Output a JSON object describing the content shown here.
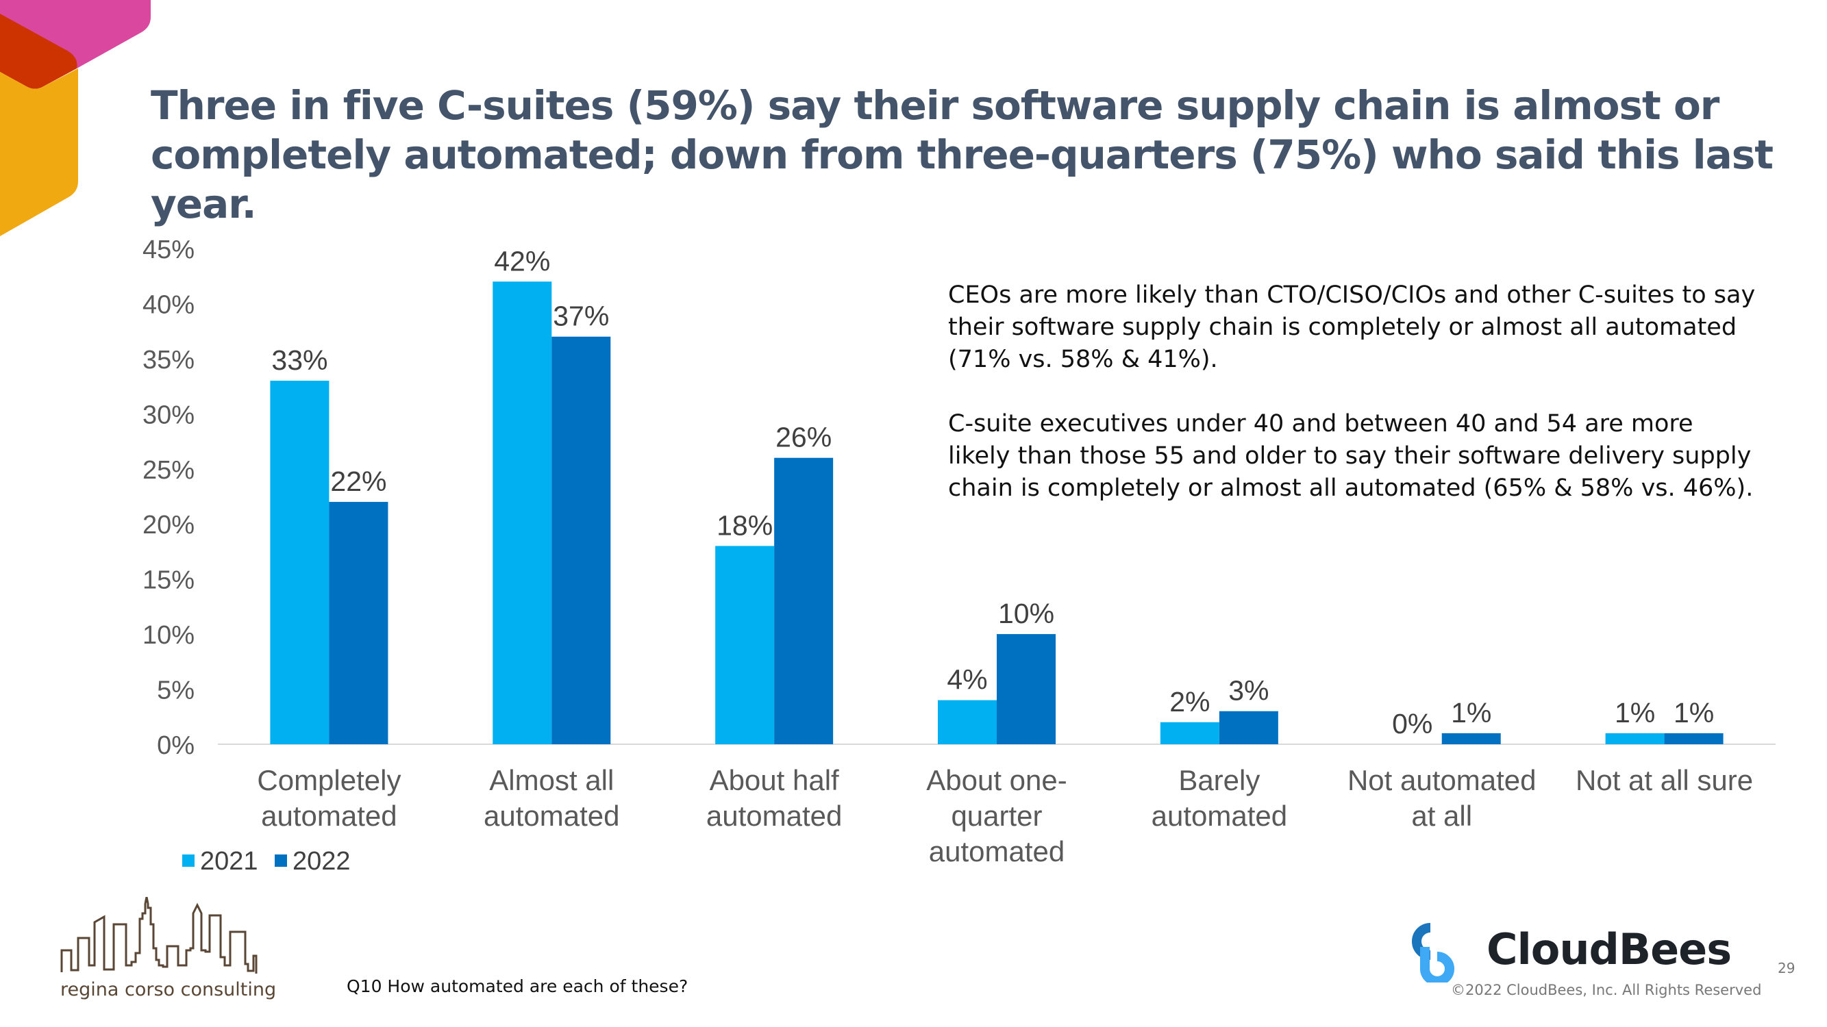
{
  "title": "Three in five C-suites (59%) say their software supply chain is almost or completely automated; down from three-quarters (75%) who said this last year.",
  "notes": [
    "CEOs are more likely than CTO/CISO/CIOs and other C-suites to say their software supply chain is completely or almost all automated (71% vs. 58% & 41%).",
    "C-suite executives under 40 and between 40 and 54 are more likely than those 55 and older to say their software delivery supply chain is completely or almost all automated (65% & 58% vs. 46%)."
  ],
  "chart_data": {
    "type": "bar",
    "categories": [
      [
        "Completely",
        "automated"
      ],
      [
        "Almost all",
        "automated"
      ],
      [
        "About half",
        "automated"
      ],
      [
        "About one-",
        "quarter",
        "automated"
      ],
      [
        "Barely",
        "automated"
      ],
      [
        "Not automated",
        "at all"
      ],
      [
        "Not at all sure"
      ]
    ],
    "series": [
      {
        "name": "2021",
        "color": "#00b0f0",
        "values": [
          33,
          42,
          18,
          4,
          2,
          0,
          1
        ],
        "labels": [
          "33%",
          "42%",
          "18%",
          "4%",
          "2%",
          "0%",
          "1%"
        ]
      },
      {
        "name": "2022",
        "color": "#0070c0",
        "values": [
          22,
          37,
          26,
          10,
          3,
          1,
          1
        ],
        "labels": [
          "22%",
          "37%",
          "26%",
          "10%",
          "3%",
          "1%",
          "1%"
        ]
      }
    ],
    "yticks": [
      "0%",
      "5%",
      "10%",
      "15%",
      "20%",
      "25%",
      "30%",
      "35%",
      "40%",
      "45%"
    ],
    "ylim": [
      0,
      45
    ],
    "grid": false,
    "legend_position": "bottom-left"
  },
  "footer": {
    "question": "Q10 How automated are each of these?",
    "consultant_logo": "regina corso consulting",
    "brand_logo": "CloudBees",
    "copyright": "©2022 CloudBees, Inc. All Rights Reserved",
    "page_number": "29"
  },
  "colors": {
    "title": "#44546a",
    "accent_pink": "#d9479e",
    "accent_red": "#cc3300",
    "accent_yellow": "#f0a911"
  }
}
